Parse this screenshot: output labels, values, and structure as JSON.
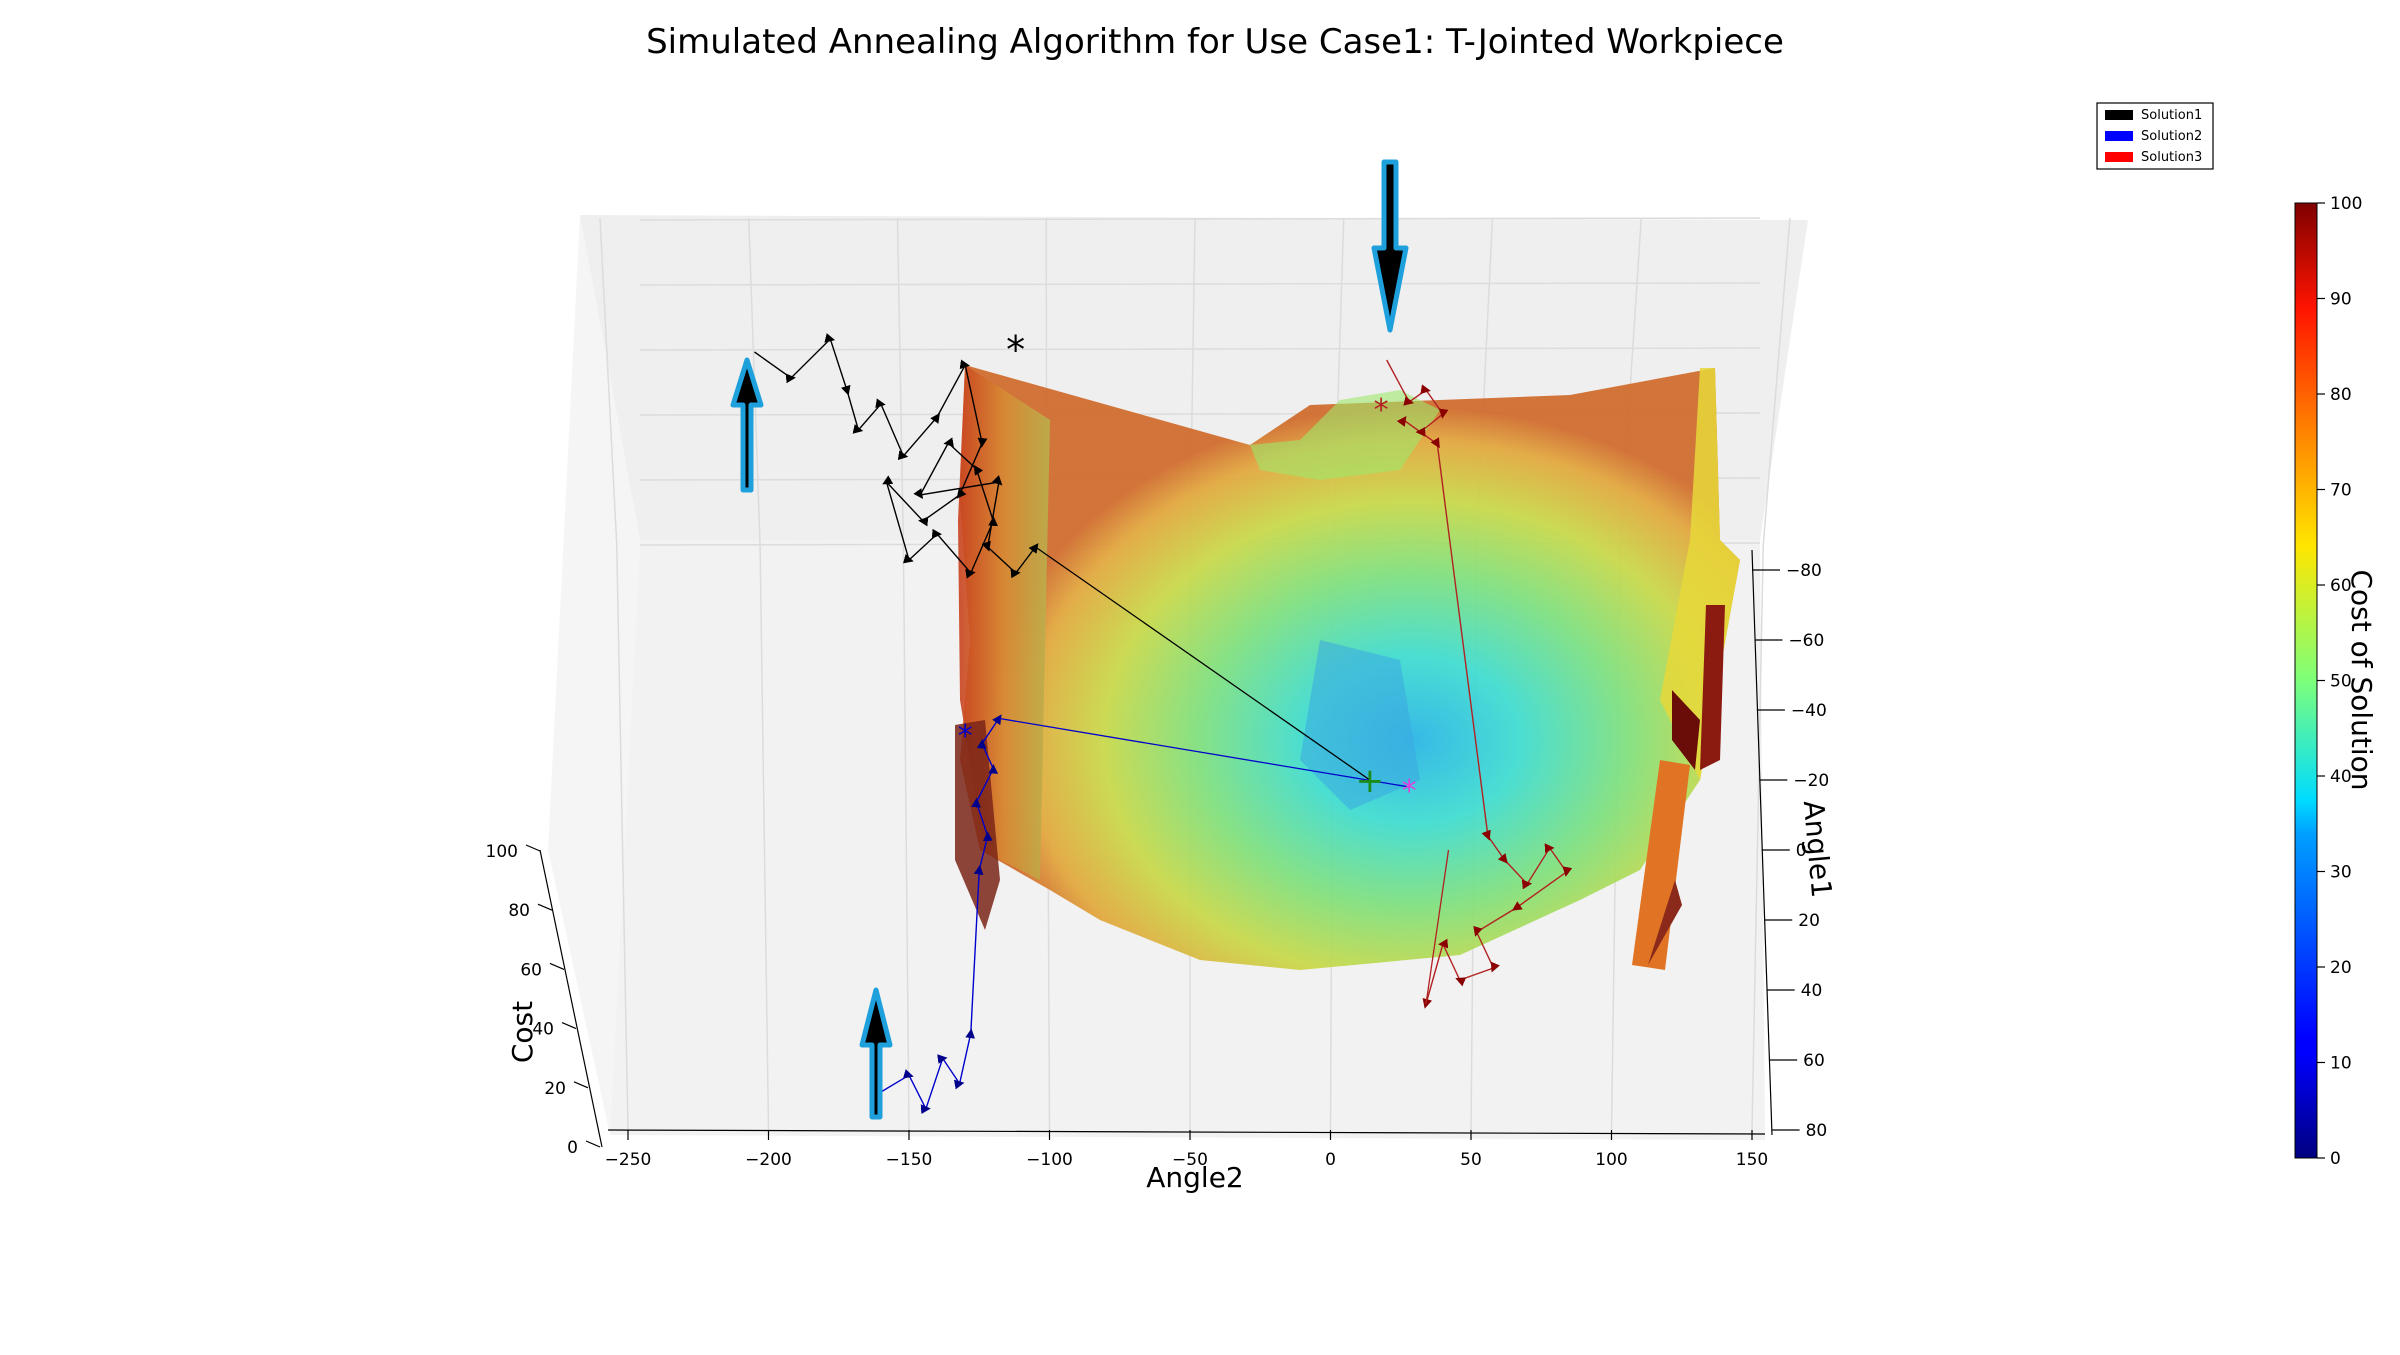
{
  "chart_data": {
    "type": "surface3d",
    "title": "Simulated Annealing Algorithm for Use Case1: T-Jointed Workpiece",
    "xlabel": "Angle2",
    "ylabel": "Angle1",
    "zlabel": "Cost",
    "colorbar_label": "Cost of Solution",
    "xlim": [
      -260,
      150
    ],
    "ylim": [
      -85,
      80
    ],
    "zlim": [
      0,
      100
    ],
    "x_ticks": [
      -250,
      -200,
      -150,
      -100,
      -50,
      0,
      50,
      100,
      150
    ],
    "y_ticks": [
      -80,
      -60,
      -40,
      -20,
      0,
      20,
      40,
      60,
      80
    ],
    "z_ticks": [
      0,
      20,
      40,
      60,
      80,
      100
    ],
    "colorbar_ticks": [
      0,
      10,
      20,
      30,
      40,
      50,
      60,
      70,
      80,
      90,
      100
    ],
    "colormap": "jet",
    "grid": true,
    "legend_position": "top-right",
    "series": [
      {
        "name": "Solution1",
        "color": "#000000",
        "path": [
          [
            -205,
            92
          ],
          [
            -192,
            88
          ],
          [
            -178,
            94
          ],
          [
            -172,
            86
          ],
          [
            -168,
            80
          ],
          [
            -160,
            84
          ],
          [
            -152,
            76
          ],
          [
            -140,
            82
          ],
          [
            -130,
            90
          ],
          [
            -124,
            78
          ],
          [
            -132,
            70
          ],
          [
            -145,
            66
          ],
          [
            -158,
            72
          ],
          [
            -150,
            60
          ],
          [
            -140,
            64
          ],
          [
            -128,
            58
          ],
          [
            -120,
            66
          ],
          [
            -126,
            74
          ],
          [
            -136,
            78
          ],
          [
            -146,
            70
          ],
          [
            -118,
            72
          ],
          [
            -122,
            62
          ],
          [
            -112,
            58
          ],
          [
            -105,
            62
          ]
        ],
        "final": [
          -122,
          98
        ],
        "end_marker": "+",
        "end": [
          14,
          -20
        ]
      },
      {
        "name": "Solution2",
        "color": "#0000ff",
        "path": [
          [
            -160,
            40
          ],
          [
            -150,
            44
          ],
          [
            -144,
            36
          ],
          [
            -138,
            48
          ],
          [
            -132,
            42
          ],
          [
            -128,
            54
          ],
          [
            -125,
            62
          ],
          [
            -122,
            70
          ],
          [
            -126,
            78
          ],
          [
            -120,
            86
          ],
          [
            -124,
            92
          ],
          [
            -118,
            98
          ]
        ],
        "final": [
          -130,
          102
        ],
        "end": [
          28,
          -18
        ]
      },
      {
        "name": "Solution3",
        "color": "#ff0000",
        "path": [
          [
            20,
            100
          ],
          [
            28,
            86
          ],
          [
            34,
            90
          ],
          [
            40,
            82
          ],
          [
            32,
            76
          ],
          [
            26,
            80
          ],
          [
            38,
            72
          ],
          [
            56,
            34
          ],
          [
            62,
            30
          ],
          [
            70,
            26
          ],
          [
            78,
            32
          ],
          [
            84,
            28
          ],
          [
            66,
            22
          ],
          [
            52,
            18
          ],
          [
            58,
            12
          ],
          [
            46,
            10
          ],
          [
            40,
            16
          ],
          [
            34,
            6
          ]
        ],
        "final": [
          18,
          94
        ],
        "end": [
          42,
          0
        ]
      }
    ],
    "annotations": [
      {
        "type": "arrow",
        "direction": "up",
        "label": "",
        "target": "Solution1 start"
      },
      {
        "type": "arrow",
        "direction": "up",
        "label": "",
        "target": "Solution2 start"
      },
      {
        "type": "arrow",
        "direction": "down",
        "label": "",
        "target": "Solution3 start"
      }
    ]
  }
}
